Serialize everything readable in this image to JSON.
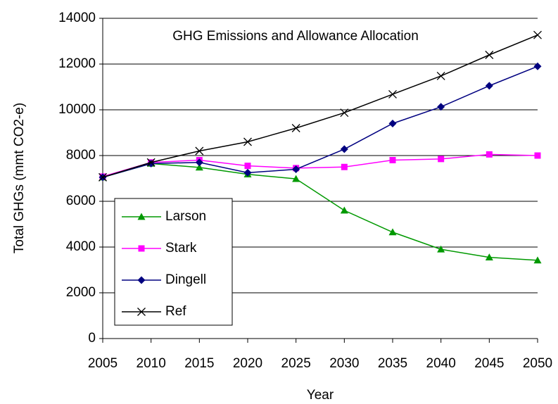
{
  "chart_data": {
    "type": "line",
    "title": "GHG Emissions and Allowance Allocation",
    "x_label": "Year",
    "y_label": "Total GHGs (mmt CO2-e)",
    "x": [
      2005,
      2010,
      2015,
      2020,
      2025,
      2030,
      2035,
      2040,
      2045,
      2050
    ],
    "xlim": [
      2005,
      2050
    ],
    "xticks": [
      2005,
      2010,
      2015,
      2020,
      2025,
      2030,
      2035,
      2040,
      2045,
      2050
    ],
    "ylim": [
      0,
      14000
    ],
    "yticks": [
      0,
      2000,
      4000,
      6000,
      8000,
      10000,
      12000,
      14000
    ],
    "grid": true,
    "legend": "lower-left",
    "series": [
      {
        "name": "Larson",
        "color": "#009900",
        "marker": "triangle",
        "values": [
          7050,
          7650,
          7480,
          7180,
          6980,
          5600,
          4650,
          3900,
          3550,
          3420
        ]
      },
      {
        "name": "Stark",
        "color": "#ff00ff",
        "marker": "square",
        "values": [
          7080,
          7700,
          7800,
          7550,
          7450,
          7500,
          7800,
          7850,
          8050,
          8000
        ]
      },
      {
        "name": "Dingell",
        "color": "#000080",
        "marker": "diamond",
        "values": [
          7050,
          7650,
          7700,
          7250,
          7400,
          8280,
          9400,
          10130,
          11050,
          11900
        ]
      },
      {
        "name": "Ref",
        "color": "#000000",
        "marker": "x",
        "values": [
          7050,
          7700,
          8200,
          8600,
          9200,
          9870,
          10680,
          11480,
          12400,
          13270
        ]
      }
    ]
  }
}
